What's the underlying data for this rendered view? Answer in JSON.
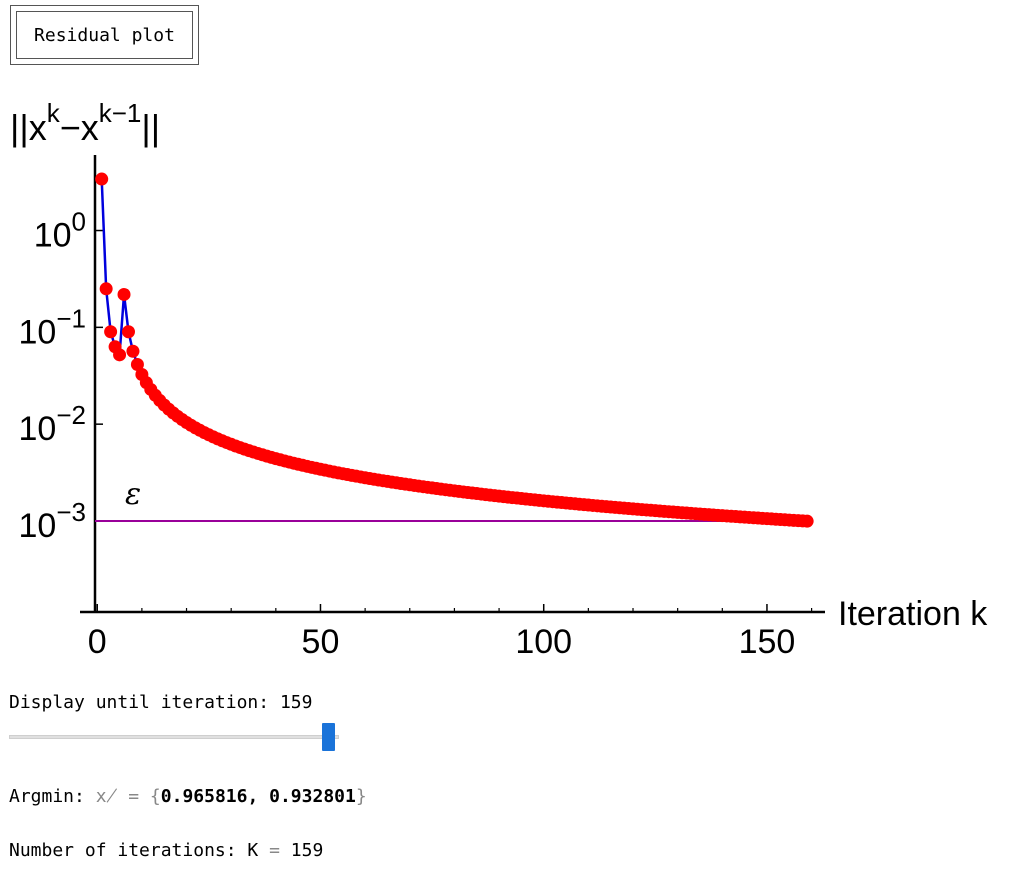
{
  "controls": {
    "residual_button": "Residual plot",
    "display_label": "Display until iteration:",
    "display_value": "159",
    "slider": {
      "min": 0,
      "max": 159,
      "value": 159
    },
    "argmin_label": "Argmin:",
    "argmin_symbol": "x̸",
    "argmin_eq": "=",
    "argmin_open": "{",
    "argmin_values": "0.965816, 0.932801",
    "argmin_close": "}",
    "iterations_label": "Number of iterations: K",
    "iterations_eq": "=",
    "iterations_value": "159"
  },
  "chart_data": {
    "type": "line",
    "ylabel_base": "||x",
    "ylabel_sup1": "k",
    "ylabel_mid": "−x",
    "ylabel_sup2": "k−1",
    "ylabel_end": "||",
    "xlabel": "Iteration k",
    "y_scale": "log",
    "xlim": [
      -0.5,
      163
    ],
    "ylim_log10": [
      -3.94,
      0.78
    ],
    "x_ticks": [
      0,
      50,
      100,
      150
    ],
    "x_minor_step": 10,
    "y_ticks": [
      {
        "value": 1,
        "base": "10",
        "exp": "0"
      },
      {
        "value": 0.1,
        "base": "10",
        "exp": "−1"
      },
      {
        "value": 0.01,
        "base": "10",
        "exp": "−2"
      },
      {
        "value": 0.001,
        "base": "10",
        "exp": "−3"
      }
    ],
    "series": [
      {
        "first_points": [
          [
            1,
            3.4
          ],
          [
            2,
            0.25
          ],
          [
            3,
            0.09
          ],
          [
            4,
            0.063
          ],
          [
            5,
            0.052
          ]
        ],
        "tail_model": {
          "formula": "c / (k - d)",
          "c": 0.153,
          "d": 5.3
        },
        "x_end": 159,
        "line_color": "#0000dd",
        "marker_color": "#ff0000"
      }
    ],
    "threshold": {
      "value": 0.001,
      "label": "ε",
      "color": "#990099"
    },
    "grid": false,
    "legend": "none"
  }
}
